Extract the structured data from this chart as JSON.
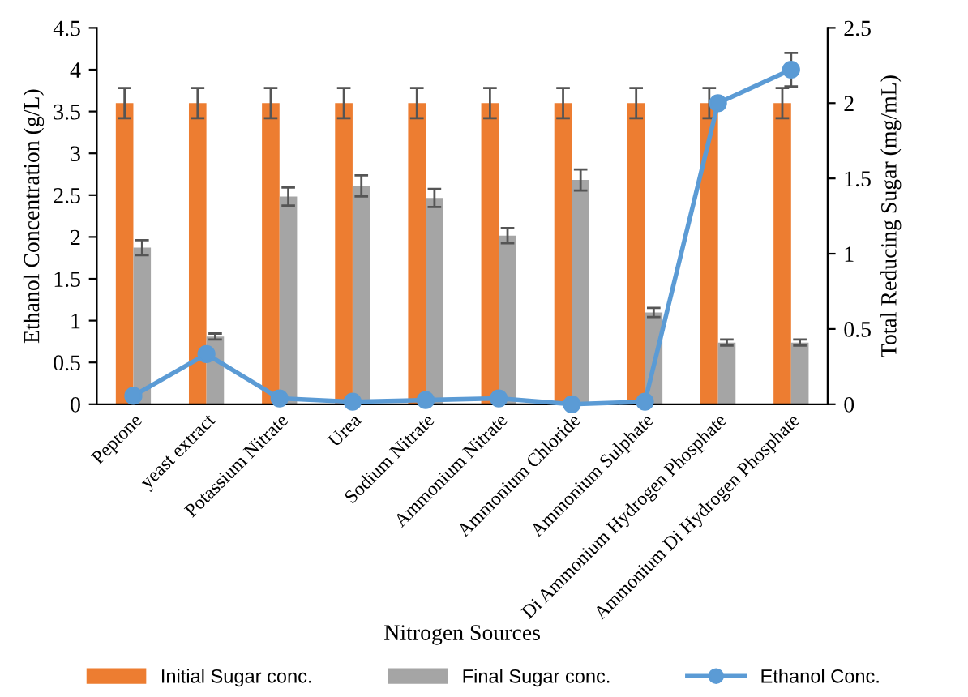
{
  "chart_data": {
    "type": "bar",
    "categories": [
      "Peptone",
      "yeast extract",
      "Potassium Nitrate",
      "Urea",
      "Sodium Nitrate",
      "Ammonium Nitrate",
      "Ammonium Chloride",
      "Ammonium Sulphate",
      "Di Ammonium Hydrogen Phosphate",
      "Ammonium Di Hydrogen Phosphate"
    ],
    "xlabel": "Nitrogen Sources",
    "ylabel": "Ethanol Concentration (g/L)",
    "y2label": "Total Reducing Sugar (mg/mL)",
    "series": [
      {
        "name": "Initial Sugar conc.",
        "type": "bar",
        "axis": "y2",
        "color": "#ed7d31",
        "values": [
          2.0,
          2.0,
          2.0,
          2.0,
          2.0,
          2.0,
          2.0,
          2.0,
          2.0,
          2.0
        ],
        "errors": [
          0.1,
          0.1,
          0.1,
          0.1,
          0.1,
          0.1,
          0.1,
          0.1,
          0.1,
          0.1
        ]
      },
      {
        "name": "Final Sugar conc.",
        "type": "bar",
        "axis": "y2",
        "color": "#a5a5a5",
        "values": [
          1.04,
          0.45,
          1.38,
          1.45,
          1.37,
          1.12,
          1.49,
          0.61,
          0.41,
          0.41
        ],
        "errors": [
          0.05,
          0.02,
          0.06,
          0.07,
          0.06,
          0.05,
          0.07,
          0.03,
          0.02,
          0.02
        ]
      },
      {
        "name": "Ethanol Conc.",
        "type": "line",
        "axis": "y",
        "color": "#5b9bd5",
        "marker": "circle",
        "values": [
          0.1,
          0.6,
          0.07,
          0.03,
          0.05,
          0.07,
          0.0,
          0.03,
          3.6,
          4.0
        ],
        "errors": [
          null,
          null,
          null,
          null,
          null,
          null,
          null,
          null,
          null,
          0.2
        ]
      }
    ],
    "ylim": [
      0,
      4.5
    ],
    "yticks": [
      0,
      0.5,
      1,
      1.5,
      2,
      2.5,
      3,
      3.5,
      4,
      4.5
    ],
    "y2lim": [
      0,
      2.5
    ],
    "y2ticks": [
      0,
      0.5,
      1,
      1.5,
      2,
      2.5
    ],
    "grid": false,
    "legend": "bottom"
  }
}
